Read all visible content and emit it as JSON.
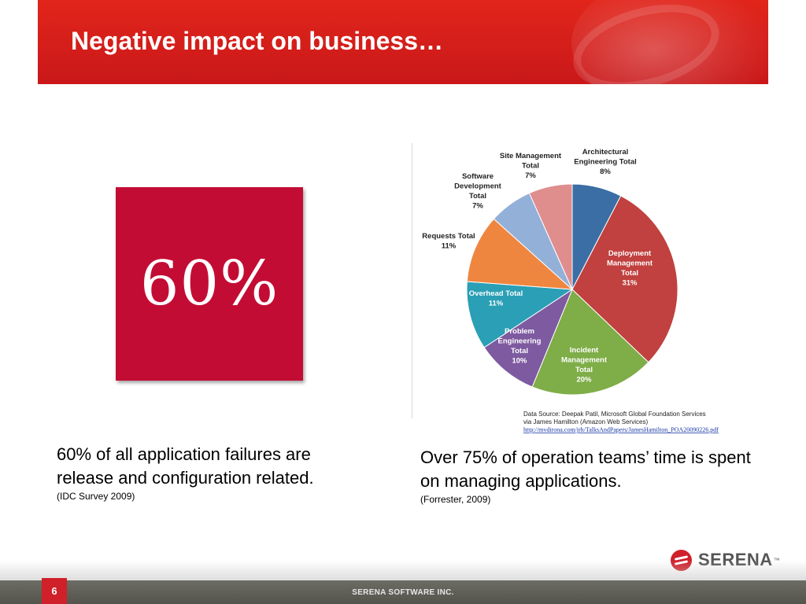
{
  "slide": {
    "title": "Negative impact on business…",
    "page_number": "6",
    "footer": "SERENA SOFTWARE INC.",
    "logo_text": "SERENA",
    "logo_tm": "™",
    "icons": {
      "logo": "serena-logo-icon"
    },
    "colors": {
      "banner": "#d91f1c",
      "stat_box": "#c30c34",
      "footer": "#5f5e56"
    }
  },
  "stat": {
    "value": "60%"
  },
  "left_caption": {
    "text": "60% of all application failures are release and configuration related.",
    "source": "(IDC Survey 2009)"
  },
  "right_caption": {
    "text": "Over 75% of operation teams’ time is spent on managing applications.",
    "source": "(Forrester, 2009)"
  },
  "chart_source": {
    "line1": "Data Source: Deepak Patil, Microsoft Global  Foundation Services",
    "line2": "via James Hamilton (Amazon Web Services)",
    "link": "http://mvdirona.com/jrh/TalksAndPapers/JamesHamilton_POA20090226.pdf"
  },
  "chart_data": {
    "type": "pie",
    "title": "",
    "slices": [
      {
        "label": "Architectural Engineering Total",
        "value": 8,
        "color": "#3a6ea5",
        "lines": [
          "Architectural",
          "Engineering Total",
          "8%"
        ],
        "inside": false
      },
      {
        "label": "Deployment Management Total",
        "value": 31,
        "color": "#c0413f",
        "lines": [
          "Deployment",
          "Management",
          "Total",
          "31%"
        ],
        "inside": true
      },
      {
        "label": "Incident Management Total",
        "value": 20,
        "color": "#7fad48",
        "lines": [
          "Incident",
          "Management",
          "Total",
          "20%"
        ],
        "inside": true
      },
      {
        "label": "Problem Engineering Total",
        "value": 10,
        "color": "#7e5aa0",
        "lines": [
          "Problem",
          "Engineering",
          "Total",
          "10%"
        ],
        "inside": true
      },
      {
        "label": "Overhead Total",
        "value": 11,
        "color": "#2a9fb5",
        "lines": [
          "Overhead Total",
          "11%"
        ],
        "inside": true
      },
      {
        "label": "Requests Total",
        "value": 11,
        "color": "#ef8640",
        "lines": [
          "Requests Total",
          "11%"
        ],
        "inside": false
      },
      {
        "label": "Software Development Total",
        "value": 7,
        "color": "#93b0d8",
        "lines": [
          "Software",
          "Development",
          "Total",
          "7%"
        ],
        "inside": false
      },
      {
        "label": "Site Management Total",
        "value": 7,
        "color": "#df8d8d",
        "lines": [
          "Site Management",
          "Total",
          "7%"
        ],
        "inside": false
      }
    ]
  }
}
